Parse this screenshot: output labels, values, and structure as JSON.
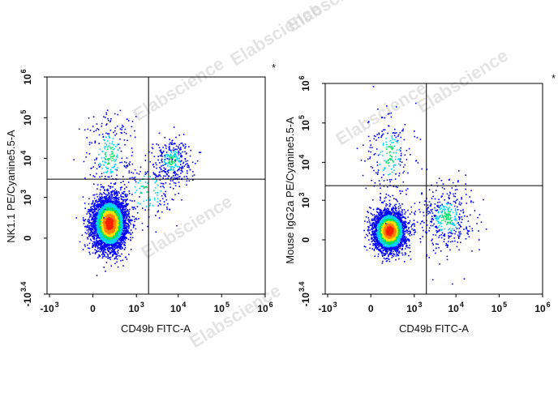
{
  "watermark": "Elabscience",
  "colors": {
    "low": "#0000ff",
    "mid": "#00d0ff",
    "mid2": "#00e060",
    "high": "#ffe000",
    "peak": "#ff2000",
    "gate": "#000000"
  },
  "chart_data": [
    {
      "type": "scatter",
      "title": "",
      "marker": "*",
      "xlabel": "CD49b FITC-A",
      "ylabel": "NK1.1 PE/Cyanine5.5-A",
      "x_ticks": [
        {
          "base": "-10",
          "sup": "3",
          "value": -1000
        },
        {
          "base": "0",
          "sup": "",
          "value": 0
        },
        {
          "base": "10",
          "sup": "3",
          "value": 1000
        },
        {
          "base": "10",
          "sup": "4",
          "value": 10000
        },
        {
          "base": "10",
          "sup": "5",
          "value": 100000
        },
        {
          "base": "10",
          "sup": "6",
          "value": 1000000
        }
      ],
      "y_ticks": [
        {
          "base": "-10",
          "sup": "3.4",
          "value": -2512
        },
        {
          "base": "0",
          "sup": "",
          "value": 0
        },
        {
          "base": "10",
          "sup": "3",
          "value": 1000
        },
        {
          "base": "10",
          "sup": "4",
          "value": 10000
        },
        {
          "base": "10",
          "sup": "5",
          "value": 100000
        },
        {
          "base": "10",
          "sup": "6",
          "value": 1000000
        }
      ],
      "gate": {
        "x": 2000,
        "y": 3000
      },
      "populations": [
        {
          "name": "main",
          "cx": 150,
          "cy": 150,
          "sx": 0.42,
          "sy": 0.55,
          "n": 5200
        },
        {
          "name": "nk",
          "cx": 7000,
          "cy": 9000,
          "sx": 0.22,
          "sy": 0.28,
          "n": 330
        },
        {
          "name": "vertical-tail",
          "cx": 150,
          "cy": 12000,
          "sx": 0.28,
          "sy": 0.55,
          "n": 260
        },
        {
          "name": "bridge",
          "cx": 1800,
          "cy": 1500,
          "sx": 0.35,
          "sy": 0.45,
          "n": 180
        }
      ]
    },
    {
      "type": "scatter",
      "title": "",
      "marker": "*",
      "xlabel": "CD49b FITC-A",
      "ylabel": "Mouse IgG2a PE/Cyanine5.5-A",
      "x_ticks": [
        {
          "base": "-10",
          "sup": "3",
          "value": -1000
        },
        {
          "base": "0",
          "sup": "",
          "value": 0
        },
        {
          "base": "10",
          "sup": "3",
          "value": 1000
        },
        {
          "base": "10",
          "sup": "4",
          "value": 10000
        },
        {
          "base": "10",
          "sup": "5",
          "value": 100000
        },
        {
          "base": "10",
          "sup": "6",
          "value": 1000000
        }
      ],
      "y_ticks": [
        {
          "base": "-10",
          "sup": "3.4",
          "value": -2512
        },
        {
          "base": "0",
          "sup": "",
          "value": 0
        },
        {
          "base": "10",
          "sup": "3",
          "value": 1000
        },
        {
          "base": "10",
          "sup": "4",
          "value": 10000
        },
        {
          "base": "10",
          "sup": "5",
          "value": 100000
        },
        {
          "base": "10",
          "sup": "6",
          "value": 1000000
        }
      ],
      "gate": {
        "x": 2000,
        "y": 2500
      },
      "populations": [
        {
          "name": "main",
          "cx": 180,
          "cy": 80,
          "sx": 0.4,
          "sy": 0.45,
          "n": 3600
        },
        {
          "name": "nk-neg",
          "cx": 6000,
          "cy": 300,
          "sx": 0.3,
          "sy": 0.42,
          "n": 420
        },
        {
          "name": "vertical-tail",
          "cx": 180,
          "cy": 15000,
          "sx": 0.28,
          "sy": 0.6,
          "n": 230
        }
      ]
    }
  ]
}
